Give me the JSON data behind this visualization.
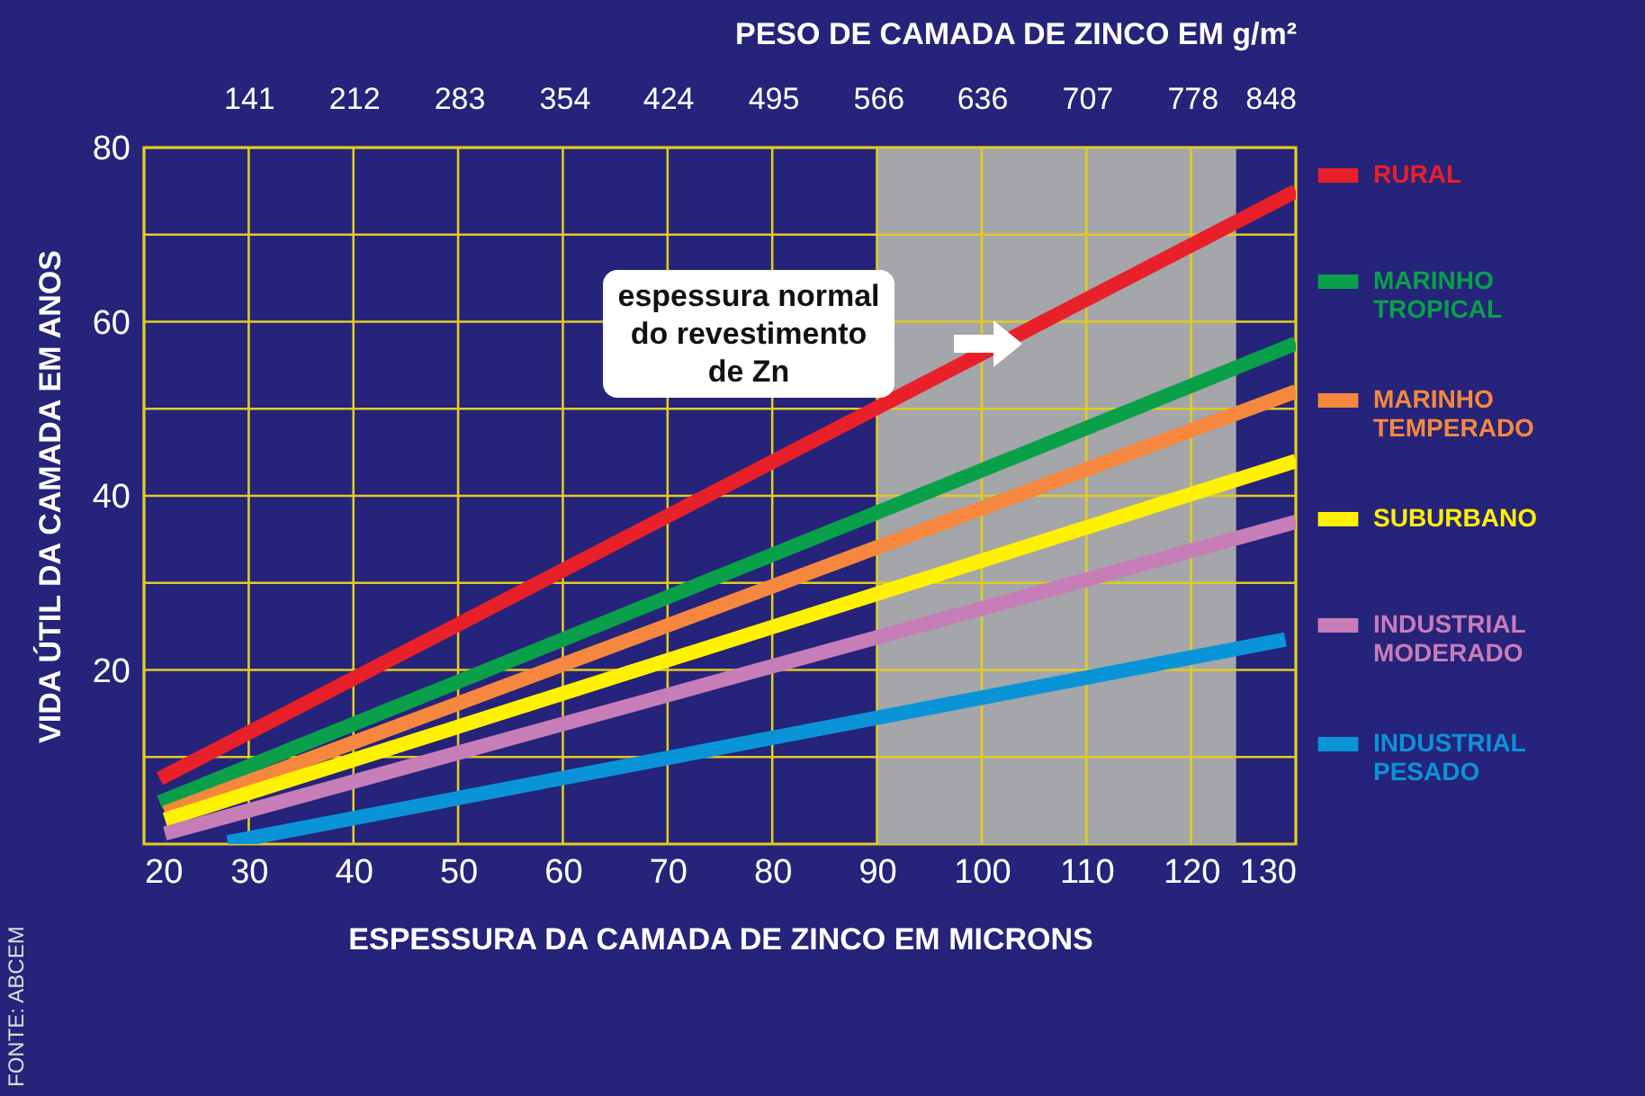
{
  "chart_data": {
    "type": "line",
    "xlabel": "ESPESSURA DA CAMADA DE  ZINCO EM MICRONS",
    "x2label": "PESO DE CAMADA DE  ZINCO EM g/m²",
    "ylabel": "VIDA ÚTIL DA CAMADA EM ANOS",
    "annotations": [
      "espessura normal do revestimento de Zn",
      "FONTE: ABCEM"
    ],
    "xlim": [
      20,
      130
    ],
    "xticks": [
      20,
      30,
      40,
      50,
      60,
      70,
      80,
      90,
      100,
      110,
      120,
      130
    ],
    "x2lim": [
      70.3,
      848
    ],
    "x2ticks": [
      141,
      212,
      283,
      354,
      424,
      495,
      566,
      636,
      707,
      778,
      848
    ],
    "ylim": [
      0,
      80
    ],
    "yticks": [
      {
        "value": 10,
        "label": null
      },
      20,
      {
        "value": 30,
        "label": null
      },
      40,
      {
        "value": 50,
        "label": null
      },
      60,
      {
        "value": 70,
        "label": null
      },
      80
    ],
    "grid": true,
    "legend": "right",
    "line_style": "solid",
    "bands": [
      {
        "axis": "x",
        "from": 90,
        "to": 124.3,
        "label": null,
        "color": "#a5a6aa"
      }
    ],
    "series": [
      {
        "name": "RURAL",
        "color": "#e8202a",
        "x": [
          21.5,
          130
        ],
        "values": [
          7.5,
          75
        ]
      },
      {
        "name": "MARINHO TROPICAL",
        "color": "#0aa04a",
        "x": [
          21.5,
          130
        ],
        "values": [
          4.8,
          57.5
        ]
      },
      {
        "name": "MARINHO TEMPERADO",
        "color": "#f5883e",
        "x": [
          22,
          130
        ],
        "values": [
          3.6,
          52
        ]
      },
      {
        "name": "SUBURBANO",
        "color": "#fff200",
        "x": [
          22,
          130
        ],
        "values": [
          2.8,
          44
        ]
      },
      {
        "name": "INDUSTRIAL MODERADO",
        "color": "#c77db8",
        "x": [
          22,
          130
        ],
        "values": [
          1.2,
          37
        ]
      },
      {
        "name": "INDUSTRIAL PESADO",
        "color": "#0a94d8",
        "x": [
          28,
          129
        ],
        "values": [
          0.2,
          23.5
        ]
      }
    ]
  }
}
